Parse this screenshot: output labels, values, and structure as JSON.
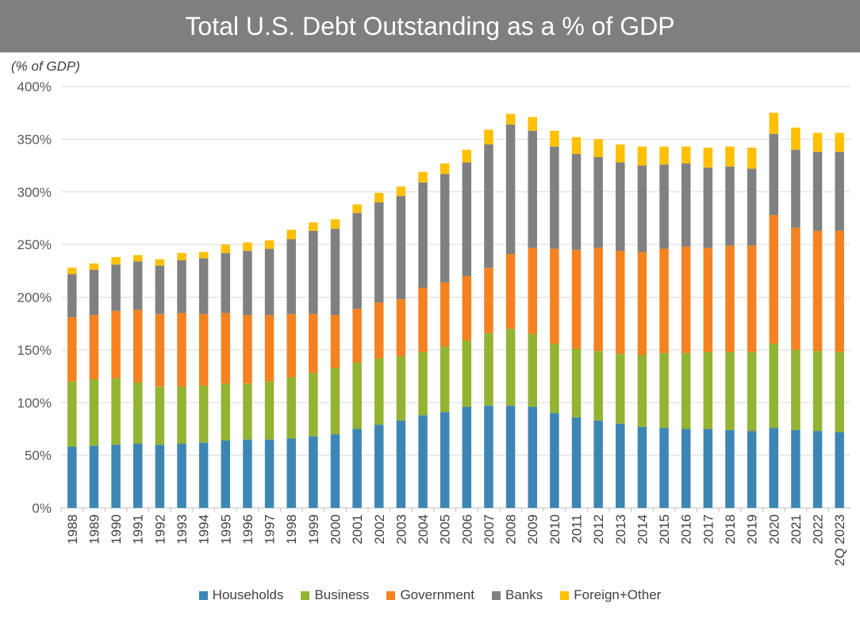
{
  "chart_data": {
    "type": "bar",
    "stacked": true,
    "title": "Total U.S. Debt Outstanding as a % of GDP",
    "ylabel": "(% of GDP)",
    "xlabel": "",
    "ylim": [
      0,
      400
    ],
    "yticks": [
      0,
      50,
      100,
      150,
      200,
      250,
      300,
      350,
      400
    ],
    "ytick_labels": [
      "0%",
      "50%",
      "100%",
      "150%",
      "200%",
      "250%",
      "300%",
      "350%",
      "400%"
    ],
    "grid": true,
    "legend_position": "bottom",
    "categories": [
      "1988",
      "1989",
      "1990",
      "1991",
      "1992",
      "1993",
      "1994",
      "1995",
      "1996",
      "1997",
      "1998",
      "1999",
      "2000",
      "2001",
      "2002",
      "2003",
      "2004",
      "2005",
      "2006",
      "2007",
      "2008",
      "2009",
      "2010",
      "2011",
      "2012",
      "2013",
      "2014",
      "2015",
      "2016",
      "2017",
      "2018",
      "2019",
      "2020",
      "2021",
      "2022",
      "2Q 2023"
    ],
    "series": [
      {
        "name": "Households",
        "color": "#3d86b4",
        "values": [
          58,
          59,
          60,
          61,
          60,
          61,
          62,
          64,
          65,
          65,
          66,
          68,
          70,
          75,
          79,
          83,
          88,
          91,
          96,
          97,
          97,
          96,
          90,
          86,
          83,
          80,
          77,
          76,
          75,
          75,
          74,
          73,
          76,
          74,
          73,
          72
        ]
      },
      {
        "name": "Business",
        "color": "#93b332",
        "values": [
          62,
          63,
          63,
          58,
          55,
          54,
          54,
          54,
          53,
          55,
          58,
          60,
          63,
          63,
          63,
          61,
          60,
          62,
          63,
          69,
          73,
          69,
          66,
          65,
          66,
          66,
          68,
          71,
          72,
          73,
          74,
          75,
          80,
          76,
          76,
          76
        ]
      },
      {
        "name": "Government",
        "color": "#f58220",
        "values": [
          61,
          61,
          64,
          69,
          69,
          70,
          68,
          67,
          65,
          63,
          60,
          56,
          50,
          51,
          53,
          54,
          61,
          61,
          61,
          62,
          71,
          82,
          90,
          94,
          98,
          98,
          98,
          99,
          101,
          99,
          101,
          101,
          122,
          116,
          114,
          115
        ]
      },
      {
        "name": "Banks",
        "color": "#808080",
        "values": [
          41,
          43,
          44,
          46,
          46,
          50,
          53,
          57,
          61,
          63,
          71,
          79,
          82,
          91,
          95,
          98,
          100,
          103,
          108,
          117,
          123,
          111,
          97,
          91,
          86,
          84,
          82,
          80,
          79,
          76,
          75,
          73,
          77,
          74,
          75,
          75
        ]
      },
      {
        "name": "Foreign+Other",
        "color": "#ffc000",
        "values": [
          6,
          6,
          7,
          6,
          6,
          7,
          6,
          8,
          8,
          8,
          9,
          8,
          9,
          8,
          9,
          9,
          10,
          10,
          12,
          14,
          10,
          13,
          15,
          16,
          17,
          17,
          18,
          17,
          16,
          19,
          19,
          20,
          20,
          21,
          18,
          18
        ]
      }
    ]
  }
}
